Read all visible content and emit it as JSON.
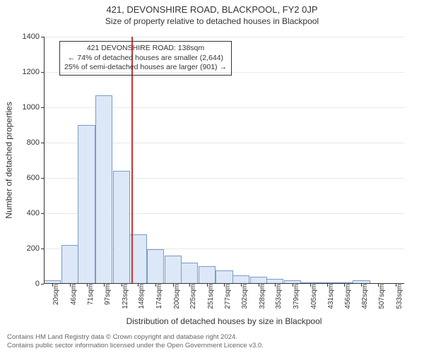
{
  "title": "421, DEVONSHIRE ROAD, BLACKPOOL, FY2 0JP",
  "subtitle": "Size of property relative to detached houses in Blackpool",
  "ylabel": "Number of detached properties",
  "xlabel": "Distribution of detached houses by size in Blackpool",
  "footer_line1": "Contains HM Land Registry data © Crown copyright and database right 2024.",
  "footer_line2": "Contains public sector information licensed under the Open Government Licence v3.0.",
  "annotation": {
    "line1": "421 DEVONSHIRE ROAD: 138sqm",
    "line2": "← 74% of detached houses are smaller (2,644)",
    "line3": "25% of semi-detached houses are larger (901) →"
  },
  "chart": {
    "type": "histogram",
    "bar_fill": "#dce8f7",
    "bar_border": "#7a9ac9",
    "vline_color": "#cc3333",
    "vline_x": 138,
    "background_color": "#ffffff",
    "grid_color": "#e8e8e8",
    "axis_color": "#333333",
    "title_fontsize": 13,
    "subtitle_fontsize": 12,
    "label_fontsize": 12,
    "tick_fontsize": 11,
    "xtick_fontsize": 10,
    "ylim": [
      0,
      1400
    ],
    "ytick_step": 200,
    "yticks": [
      0,
      200,
      400,
      600,
      800,
      1000,
      1200,
      1400
    ],
    "xlim": [
      7,
      546
    ],
    "xticks": [
      20,
      46,
      71,
      97,
      123,
      148,
      174,
      200,
      225,
      251,
      277,
      302,
      328,
      353,
      379,
      405,
      431,
      456,
      482,
      507,
      533
    ],
    "xtick_suffix": "sqm",
    "bar_width_data": 25.6,
    "bars": [
      {
        "x": 20,
        "y": 20
      },
      {
        "x": 46,
        "y": 220
      },
      {
        "x": 71,
        "y": 900
      },
      {
        "x": 97,
        "y": 1070
      },
      {
        "x": 123,
        "y": 640
      },
      {
        "x": 148,
        "y": 280
      },
      {
        "x": 174,
        "y": 195
      },
      {
        "x": 200,
        "y": 160
      },
      {
        "x": 225,
        "y": 120
      },
      {
        "x": 251,
        "y": 100
      },
      {
        "x": 277,
        "y": 75
      },
      {
        "x": 302,
        "y": 50
      },
      {
        "x": 328,
        "y": 40
      },
      {
        "x": 353,
        "y": 30
      },
      {
        "x": 379,
        "y": 20
      },
      {
        "x": 405,
        "y": 5
      },
      {
        "x": 431,
        "y": 5
      },
      {
        "x": 456,
        "y": 5
      },
      {
        "x": 482,
        "y": 20
      },
      {
        "x": 507,
        "y": 0
      },
      {
        "x": 533,
        "y": 0
      }
    ]
  }
}
